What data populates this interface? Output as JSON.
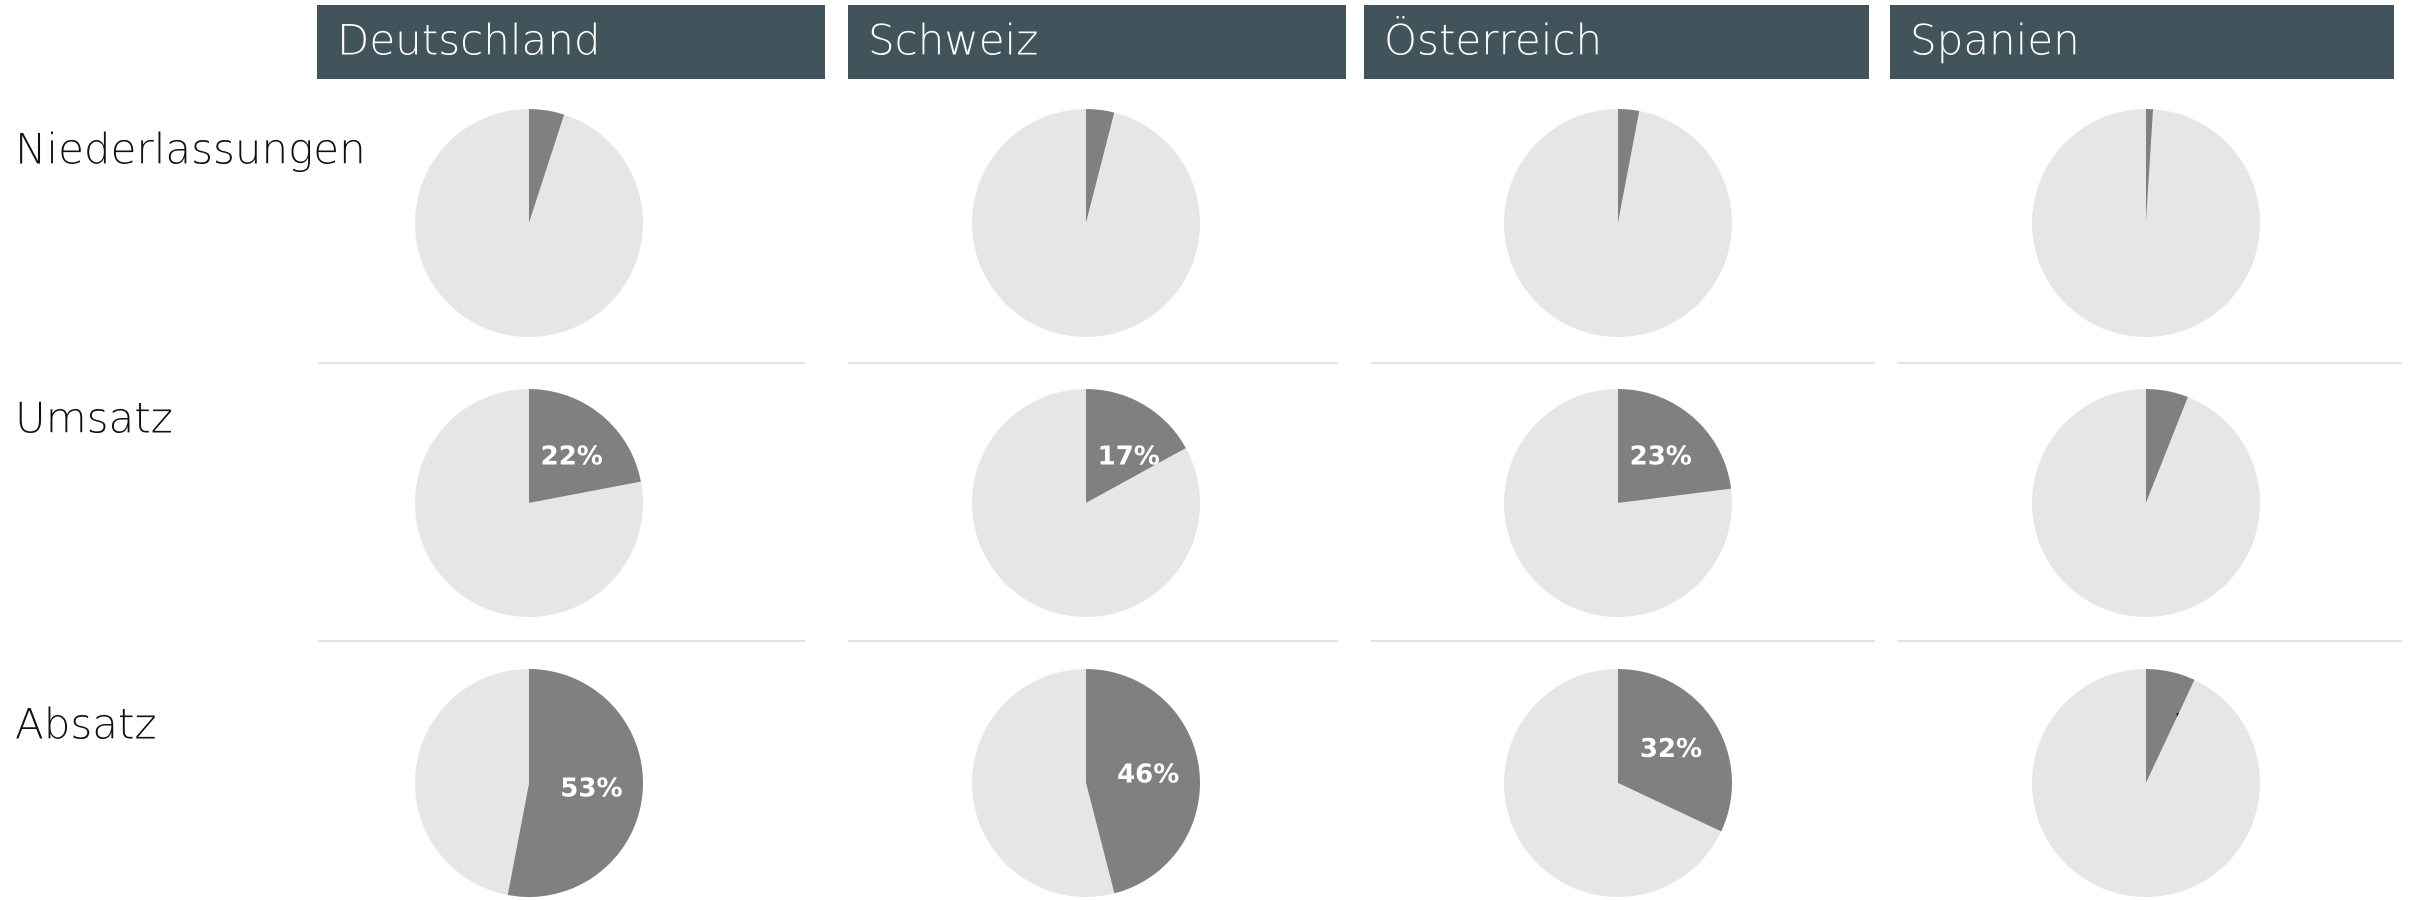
{
  "columns": [
    "Deutschland",
    "Schweiz",
    "Österreich",
    "Spanien"
  ],
  "rows": [
    "Niederlassungen",
    "Umsatz",
    "Absatz"
  ],
  "chart_data": [
    {
      "type": "pie",
      "values": [
        5,
        95
      ],
      "value_labels": [
        "5%",
        null
      ],
      "colors": [
        "#808080",
        "#e6e6e6"
      ],
      "label_color": "#111111"
    },
    {
      "type": "pie",
      "values": [
        4,
        96
      ],
      "value_labels": [
        "4%",
        null
      ],
      "colors": [
        "#808080",
        "#e6e6e6"
      ],
      "label_color": "#111111"
    },
    {
      "type": "pie",
      "values": [
        3,
        97
      ],
      "value_labels": [
        "3%",
        null
      ],
      "colors": [
        "#808080",
        "#e6e6e6"
      ],
      "label_color": "#111111"
    },
    {
      "type": "pie",
      "values": [
        1,
        99
      ],
      "value_labels": [
        "1%",
        null
      ],
      "colors": [
        "#808080",
        "#e6e6e6"
      ],
      "label_color": "#111111"
    },
    {
      "type": "pie",
      "values": [
        22,
        78
      ],
      "value_labels": [
        "22%",
        null
      ],
      "colors": [
        "#808080",
        "#e6e6e6"
      ],
      "label_color": "#ffffff"
    },
    {
      "type": "pie",
      "values": [
        17,
        83
      ],
      "value_labels": [
        "17%",
        null
      ],
      "colors": [
        "#808080",
        "#e6e6e6"
      ],
      "label_color": "#ffffff"
    },
    {
      "type": "pie",
      "values": [
        23,
        77
      ],
      "value_labels": [
        "23%",
        null
      ],
      "colors": [
        "#808080",
        "#e6e6e6"
      ],
      "label_color": "#ffffff"
    },
    {
      "type": "pie",
      "values": [
        6,
        94
      ],
      "value_labels": [
        "6%",
        null
      ],
      "colors": [
        "#808080",
        "#e6e6e6"
      ],
      "label_color": "#111111"
    },
    {
      "type": "pie",
      "values": [
        53,
        47
      ],
      "value_labels": [
        "53%",
        null
      ],
      "colors": [
        "#808080",
        "#e6e6e6"
      ],
      "label_color": "#ffffff"
    },
    {
      "type": "pie",
      "values": [
        46,
        54
      ],
      "value_labels": [
        "46%",
        null
      ],
      "colors": [
        "#808080",
        "#e6e6e6"
      ],
      "label_color": "#ffffff"
    },
    {
      "type": "pie",
      "values": [
        32,
        68
      ],
      "value_labels": [
        "32%",
        null
      ],
      "colors": [
        "#808080",
        "#e6e6e6"
      ],
      "label_color": "#ffffff"
    },
    {
      "type": "pie",
      "values": [
        7,
        93
      ],
      "value_labels": [
        "7%",
        null
      ],
      "colors": [
        "#808080",
        "#e6e6e6"
      ],
      "label_color": "#111111"
    }
  ]
}
